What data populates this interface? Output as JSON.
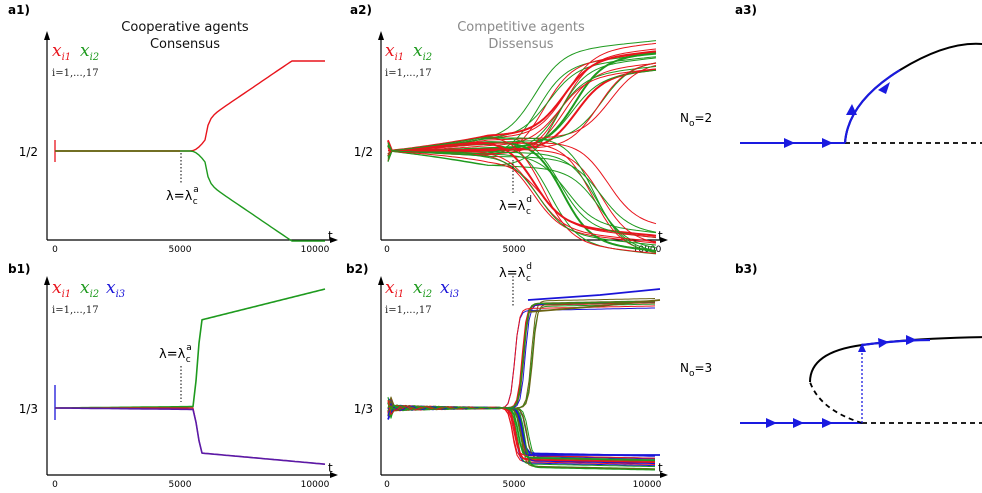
{
  "colors": {
    "red": "#e8141c",
    "green": "#1e9a1e",
    "blue": "#1a14d8",
    "olive": "#6b6414",
    "purple": "#5a1aa8",
    "title_dark": "#111111",
    "title_grey": "#8a8a8a",
    "arrow": "#1a1ae0"
  },
  "panels": {
    "a1": {
      "label": "a1)",
      "title1": "Cooperative agents",
      "title2": "Consensus",
      "legend": [
        "x",
        "x"
      ],
      "legend_sub": [
        "i1",
        "i2"
      ],
      "index": "i=1,...,17",
      "ylabel": "1/2",
      "lambda_main": "λ=λ",
      "lambda_sup": "a",
      "lambda_sub": "c",
      "t": "t",
      "ticks": [
        "0",
        "5000",
        "10000"
      ]
    },
    "a2": {
      "label": "a2)",
      "title1": "Competitive agents",
      "title2": "Dissensus",
      "legend": [
        "x",
        "x"
      ],
      "legend_sub": [
        "i1",
        "i2"
      ],
      "index": "i=1,...,17",
      "ylabel": "1/2",
      "lambda_main": "λ=λ",
      "lambda_sup": "d",
      "lambda_sub": "c",
      "t": "t",
      "ticks": [
        "0",
        "5000",
        "10000"
      ]
    },
    "a3": {
      "label": "a3)",
      "no_main": "N",
      "no_sub": "o",
      "no_val": "=2"
    },
    "b1": {
      "label": "b1)",
      "legend": [
        "x",
        "x",
        "x"
      ],
      "legend_sub": [
        "i1",
        "i2",
        "i3"
      ],
      "index": "i=1,...,17",
      "ylabel": "1/3",
      "lambda_main": "λ=λ",
      "lambda_sup": "a",
      "lambda_sub": "c",
      "t": "t",
      "ticks": [
        "0",
        "5000",
        "10000"
      ]
    },
    "b2": {
      "label": "b2)",
      "legend": [
        "x",
        "x",
        "x"
      ],
      "legend_sub": [
        "i1",
        "i2",
        "i3"
      ],
      "index": "i=1,...,17",
      "ylabel": "1/3",
      "lambda_main": "λ=λ",
      "lambda_sup": "d",
      "lambda_sub": "c",
      "t": "t",
      "ticks": [
        "0",
        "5000",
        "10000"
      ]
    },
    "b3": {
      "label": "b3)",
      "no_main": "N",
      "no_sub": "o",
      "no_val": "=3"
    }
  },
  "chart_data": [
    {
      "type": "line",
      "panel": "a1",
      "title": "Cooperative agents Consensus",
      "x": [
        0,
        4000,
        5000,
        5500,
        5800,
        6000,
        6500,
        7000,
        8000,
        9000,
        10000
      ],
      "xlim": [
        0,
        10000
      ],
      "ylabel": "1/2",
      "series": [
        {
          "name": "x_i1",
          "color": "#e8141c",
          "y": [
            0.5,
            0.5,
            0.5,
            0.505,
            0.53,
            0.58,
            0.635,
            0.67,
            0.72,
            0.76,
            0.8
          ]
        },
        {
          "name": "x_i2",
          "color": "#1e9a1e",
          "y": [
            0.5,
            0.5,
            0.5,
            0.495,
            0.47,
            0.42,
            0.365,
            0.33,
            0.28,
            0.24,
            0.2
          ]
        }
      ]
    },
    {
      "type": "line",
      "panel": "a2",
      "title": "Competitive agents Dissensus",
      "x": [
        0,
        5000,
        10000
      ],
      "xlim": [
        0,
        10000
      ],
      "ylabel": "1/2",
      "agents": 17,
      "series": [
        {
          "name": "x_i1",
          "color": "#e8141c"
        },
        {
          "name": "x_i2",
          "color": "#1e9a1e"
        }
      ]
    },
    {
      "type": "line",
      "panel": "b1",
      "x": [
        0,
        5000,
        5800,
        10000
      ],
      "xlim": [
        0,
        10000
      ],
      "ylabel": "1/3",
      "series": [
        {
          "name": "x_i1",
          "color": "#e8141c"
        },
        {
          "name": "x_i2",
          "color": "#1e9a1e",
          "y": [
            0.333,
            0.333,
            0.66,
            0.83
          ]
        },
        {
          "name": "x_i3",
          "color": "#1a14d8",
          "y": [
            0.333,
            0.333,
            0.15,
            0.08
          ]
        }
      ]
    },
    {
      "type": "line",
      "panel": "b2",
      "x": [
        0,
        5000,
        10000
      ],
      "xlim": [
        0,
        10000
      ],
      "ylabel": "1/3",
      "agents": 17,
      "series": [
        {
          "name": "x_i1",
          "color": "#e8141c"
        },
        {
          "name": "x_i2",
          "color": "#1e9a1e"
        },
        {
          "name": "x_i3",
          "color": "#1a14d8"
        }
      ]
    }
  ]
}
